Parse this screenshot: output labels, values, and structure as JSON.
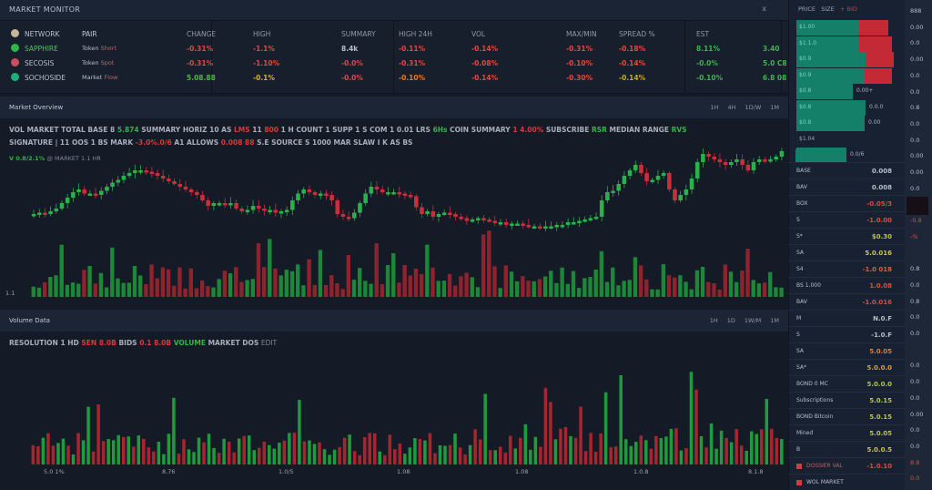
{
  "window": {
    "title": "MARKET MONITOR",
    "close_label": "x"
  },
  "ticker": {
    "headers": [
      "PAIR",
      "CHANGE",
      "HIGH",
      "SUMMARY",
      "HIGH 24H",
      "VOL",
      "MAX/MIN",
      "SPREAD %",
      "EST"
    ],
    "rows": [
      {
        "symbol": "NETWORK",
        "icon_color": "#c8b49a",
        "name_color": "#b9c0cc",
        "pair": "PAIR",
        "desc": "",
        "values": [
          "",
          "",
          "",
          "",
          "",
          "",
          "",
          "",
          ""
        ]
      },
      {
        "symbol": "SAPPHIRE",
        "icon_color": "#2fb54a",
        "name_color": "#57c066",
        "pair": "Token",
        "desc": "Short",
        "values": [
          "-0.31%",
          "-1.1%",
          "8.4k",
          "-0.11%",
          "-0.14%",
          "-0.31%",
          "-0.18%",
          "8.11%",
          "3.40"
        ],
        "colors": [
          "#e04a3c",
          "#e04a3c",
          "#b9c0cc",
          "#e04a3c",
          "#e04a3c",
          "#e04a3c",
          "#e04a3c",
          "#3cb54a",
          "#3cb54a"
        ]
      },
      {
        "symbol": "SECOSIS",
        "icon_color": "#c94f60",
        "name_color": "#b9c0cc",
        "pair": "Token",
        "desc": "Spot",
        "values": [
          "-0.31%",
          "-1.10%",
          "-0.0%",
          "-0.31%",
          "-0.08%",
          "-0.10%",
          "-0.14%",
          "-0.0%",
          "5.0 C8"
        ],
        "colors": [
          "#e04a3c",
          "#e04a3c",
          "#e04a3c",
          "#e04a3c",
          "#e04a3c",
          "#e04a3c",
          "#e04a3c",
          "#3cb54a",
          "#3cb54a"
        ]
      },
      {
        "symbol": "SOCHOSIDE",
        "icon_color": "#1fb07a",
        "name_color": "#b9c0cc",
        "pair": "Market",
        "desc": "Flow",
        "values": [
          "5.08.88",
          "-0.1%",
          "-0.0%",
          "-0.10%",
          "-0.14%",
          "-0.30%",
          "-0.14%",
          "-0.10%",
          "6.8 08"
        ],
        "colors": [
          "#4cb840",
          "#d6b030",
          "#e04a3c",
          "#e8792a",
          "#e04a3c",
          "#e04a3c",
          "#c9a830",
          "#3cb54a",
          "#3cb54a"
        ]
      }
    ]
  },
  "price_panel": {
    "title": "Market Overview",
    "timeframes": [
      "1H",
      "4H",
      "1D/W",
      "1M"
    ],
    "info_line1": [
      {
        "t": "VOL MARKET TOTAL",
        "c": ""
      },
      {
        "t": "BASE 8",
        "c": ""
      },
      {
        "t": "5.874",
        "c": "g"
      },
      {
        "t": "SUMMARY",
        "c": ""
      },
      {
        "t": "HORIZ 10 AS",
        "c": ""
      },
      {
        "t": "LMS",
        "c": "r"
      },
      {
        "t": "11",
        "c": ""
      },
      {
        "t": "800",
        "c": "r"
      },
      {
        "t": "1 H COUNT",
        "c": ""
      },
      {
        "t": "1 SUPP 1 S COM 1",
        "c": ""
      },
      {
        "t": "0.01 LRS",
        "c": ""
      },
      {
        "t": "6Hs",
        "c": "g"
      },
      {
        "t": "COIN SUMMARY",
        "c": ""
      },
      {
        "t": "1 4.00%",
        "c": "r"
      },
      {
        "t": "SUBSCRIBE",
        "c": ""
      },
      {
        "t": "RSR",
        "c": "g"
      },
      {
        "t": "MEDIAN RANGE",
        "c": ""
      },
      {
        "t": "RVS",
        "c": "g"
      }
    ],
    "info_line2": [
      {
        "t": "SIGNATURE | 11 OOS",
        "c": ""
      },
      {
        "t": "1 BS MARK",
        "c": ""
      },
      {
        "t": "-3.0%.0/6",
        "c": "r"
      },
      {
        "t": "A1 ALLOWS",
        "c": ""
      },
      {
        "t": "0.008 88",
        "c": "r"
      },
      {
        "t": "S.E",
        "c": ""
      },
      {
        "t": "SOURCE S 1000 MAR SLAW",
        "c": ""
      },
      {
        "t": "I K AS BS",
        "c": ""
      }
    ],
    "info_line3": [
      {
        "t": "V 0.8/2.1%",
        "c": "g"
      },
      {
        "t": "@ MARKET 1.1 HR",
        "c": "m"
      }
    ],
    "left_axis": "1.1"
  },
  "volume_panel": {
    "title": "Volume Data",
    "timeframes": [
      "1H",
      "1D",
      "1W/M",
      "1M"
    ],
    "info_line": [
      {
        "t": "RESOLUTION 1 HD",
        "c": ""
      },
      {
        "t": "SEN",
        "c": "r"
      },
      {
        "t": "8.0B",
        "c": "r"
      },
      {
        "t": "BIDS",
        "c": ""
      },
      {
        "t": "0.1",
        "c": "r"
      },
      {
        "t": "8.0B",
        "c": "r"
      },
      {
        "t": "VOLUME",
        "c": "g"
      },
      {
        "t": "MARKET DOS",
        "c": ""
      },
      {
        "t": "EDIT",
        "c": "m"
      }
    ],
    "x_labels": [
      "5.0 1%",
      "8.76",
      "1.0/5",
      "1.08",
      "1.08",
      "1.0.8",
      "8.1.8"
    ]
  },
  "order_book": {
    "header": [
      "PRICE",
      "SIZE",
      "+ BID",
      "x"
    ],
    "bars": [
      {
        "label": "$1.00",
        "green": 69,
        "red": 32,
        "extra": ""
      },
      {
        "label": "$1.1.0",
        "green": 69,
        "red": 36,
        "extra": ""
      },
      {
        "label": "$0.9",
        "green": 76,
        "red": 31,
        "extra": ""
      },
      {
        "label": "$0.9",
        "green": 75,
        "red": 30,
        "extra": ""
      },
      {
        "label": "$0.8",
        "green": 62,
        "red": 0,
        "extra": "0.00+"
      },
      {
        "label": "$0.8",
        "green": 76,
        "red": 0,
        "extra": "0.0.0"
      },
      {
        "label": "$0.8",
        "green": 75,
        "red": 0,
        "extra": "0.00"
      },
      {
        "label": "$1.04",
        "green": 0,
        "red": 0,
        "extra": ""
      },
      {
        "label": "$0.8",
        "green": 55,
        "red": 0,
        "extra": "0.0/6"
      }
    ],
    "list": [
      {
        "label": "BASE",
        "value": "0.008",
        "color": "#b7bfcb"
      },
      {
        "label": "BAV",
        "value": "0.008",
        "color": "#b7bfcb"
      },
      {
        "label": "BOX",
        "value": "-0.05/3",
        "color": "#e04a3c"
      },
      {
        "label": "S",
        "value": "-1.0.00",
        "color": "#e04a3c"
      },
      {
        "label": "S*",
        "value": "$0.30",
        "color": "#b8c83a"
      },
      {
        "label": "SA",
        "value": "5.0.016",
        "color": "#c9c83a"
      },
      {
        "label": "S4",
        "value": "-1.0 018",
        "color": "#e85a3a"
      },
      {
        "label": "BS 1.000",
        "value": "1.0.08",
        "color": "#e04a3c"
      },
      {
        "label": "BAV",
        "value": "-1.0.016",
        "color": "#e04a3c"
      },
      {
        "label": "M",
        "value": "N.0.F",
        "color": "#b7bfcb"
      },
      {
        "label": "S",
        "value": "-1.0.F",
        "color": "#b7bfcb"
      },
      {
        "label": "SA",
        "value": "5.0.05",
        "color": "#e8792a"
      },
      {
        "label": "SA*",
        "value": "5.0.0.0",
        "color": "#e0a030"
      },
      {
        "label": "BOND 0 MC",
        "value": "5.0.0.0",
        "color": "#a8c83a"
      },
      {
        "label": "Subscriptions",
        "value": "5.0.15",
        "color": "#b8c83a"
      },
      {
        "label": "BOND Bitcoin",
        "value": "5.0.15",
        "color": "#b8c83a"
      },
      {
        "label": "Mined",
        "value": "5.0.05",
        "color": "#b8c83a"
      },
      {
        "label": "B",
        "value": "5.0.0.5",
        "color": "#c8c83a"
      },
      {
        "label": "DOSSIER VAL",
        "value": "-1.0.10",
        "color": "#e04a3c",
        "icon": true
      },
      {
        "label": "WOL MARKET",
        "value": "",
        "color": "#b7bfcb",
        "icon": true
      }
    ]
  },
  "far_column": {
    "values": [
      "888",
      "0.00",
      "0.0",
      "0.00",
      "0.0",
      "0.0",
      "0.8",
      "0.0",
      "0.0",
      "0.00",
      "0.00",
      "0.0",
      "x",
      "-0.8",
      "-%",
      "",
      "0.8",
      "0.0",
      "0.8",
      "0.0",
      "0.0",
      "",
      "0.0",
      "0.0",
      "0.0",
      "0.00",
      "0.0",
      "0.0",
      "8.8",
      "0.0"
    ]
  },
  "colors": {
    "up": "#27b24a",
    "down": "#c92f3a",
    "up_vol": "#1f9a3c",
    "down_vol": "#a5262f",
    "bg": "#141a26",
    "panel": "#1c2535"
  },
  "chart_data": {
    "type": "candlestick",
    "title": "Market Overview",
    "note": "Candlestick price series with volume bars; values are approximate pixel-relative levels (0-100 scale).",
    "price_close": [
      30,
      31,
      30,
      32,
      34,
      38,
      42,
      46,
      48,
      45,
      45,
      44,
      47,
      50,
      53,
      55,
      58,
      60,
      62,
      62,
      61,
      60,
      58,
      56,
      54,
      52,
      50,
      48,
      46,
      44,
      40,
      36,
      38,
      38,
      37,
      38,
      34,
      32,
      33,
      36,
      34,
      33,
      33,
      31,
      32,
      33,
      40,
      45,
      48,
      46,
      44,
      45,
      44,
      40,
      30,
      28,
      27,
      31,
      38,
      45,
      50,
      48,
      46,
      46,
      46,
      45,
      44,
      43,
      35,
      30,
      32,
      28,
      30,
      31,
      30,
      28,
      27,
      25,
      26,
      27,
      26,
      25,
      24,
      24,
      22,
      23,
      23,
      22,
      21,
      21,
      20,
      21,
      21,
      22,
      22,
      24,
      24,
      25,
      26,
      27,
      28,
      40,
      46,
      47,
      52,
      58,
      62,
      66,
      60,
      54,
      55,
      58,
      60,
      48,
      40,
      44,
      48,
      56,
      68,
      74,
      72,
      70,
      68,
      66,
      68,
      70,
      66,
      62,
      68,
      70,
      69,
      70,
      72,
      76
    ]
  }
}
